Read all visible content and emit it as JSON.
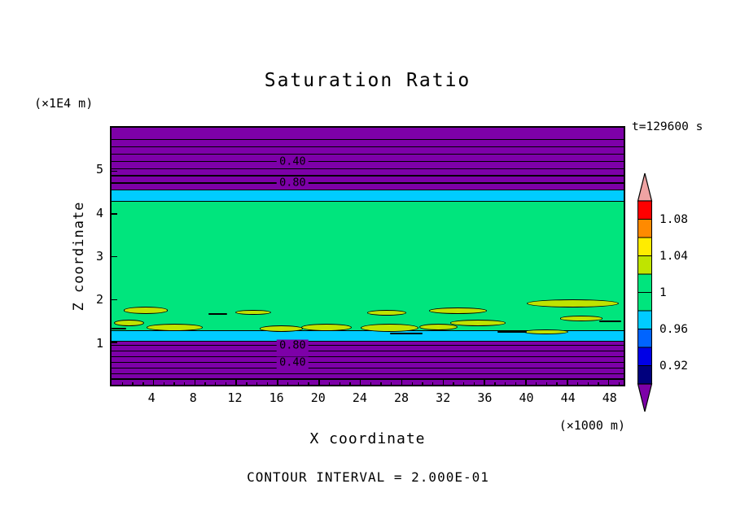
{
  "chart_data": {
    "type": "heatmap",
    "title": "Saturation Ratio",
    "time_label": "t=129600 s",
    "xlabel": "X coordinate",
    "ylabel": "Z coordinate",
    "x_unit": "(×1000 m)",
    "y_unit": "(×1E4 m)",
    "contour_interval_text": "CONTOUR INTERVAL = 2.000E-01",
    "x_domain": [
      0,
      49.5
    ],
    "y_domain": [
      0,
      6
    ],
    "x_ticks": [
      4,
      8,
      12,
      16,
      20,
      24,
      28,
      32,
      36,
      40,
      44,
      48
    ],
    "y_ticks": [
      1,
      2,
      3,
      4,
      5
    ],
    "colors": {
      "purple": "#7d00a8",
      "green": "#00e57d",
      "cyan": "#00ccff",
      "chartreuse": "#bfe400",
      "red": "#ff0000",
      "orange": "#ff8a00",
      "yellow": "#ffec00",
      "blue": "#0064ff",
      "dark_blue": "#0000e6",
      "navy": "#00007d",
      "pink": "#efa3a3",
      "line": "#000000"
    },
    "bands": [
      {
        "z_from": 4.55,
        "z_to": 6.0,
        "color": "purple"
      },
      {
        "z_from": 4.28,
        "z_to": 4.55,
        "color": "cyan"
      },
      {
        "z_from": 1.26,
        "z_to": 4.28,
        "color": "green"
      },
      {
        "z_from": 1.01,
        "z_to": 1.26,
        "color": "cyan"
      },
      {
        "z_from": 0.0,
        "z_to": 1.01,
        "color": "purple"
      }
    ],
    "boundary_lines": [
      4.55,
      4.28,
      1.26,
      1.01
    ],
    "contour_lines_top": [
      5.72,
      5.55,
      5.38,
      5.21,
      5.04,
      4.88,
      4.71
    ],
    "contour_lines_bottom": [
      0.92,
      0.79,
      0.66,
      0.52,
      0.39,
      0.26,
      0.13
    ],
    "contour_labels": [
      {
        "text": "0.40",
        "x": 17.5,
        "z": 5.21
      },
      {
        "text": "0.80",
        "x": 17.5,
        "z": 4.71
      },
      {
        "text": "0.80",
        "x": 17.5,
        "z": 0.92
      },
      {
        "text": "0.40",
        "x": 17.5,
        "z": 0.52
      }
    ],
    "yellow_features": [
      {
        "x": 3.3,
        "z": 1.74,
        "w": 4.3,
        "h": 0.16
      },
      {
        "x": 1.7,
        "z": 1.44,
        "w": 2.9,
        "h": 0.15
      },
      {
        "x": 6.1,
        "z": 1.34,
        "w": 5.5,
        "h": 0.17
      },
      {
        "x": 13.7,
        "z": 1.69,
        "w": 3.4,
        "h": 0.12
      },
      {
        "x": 16.4,
        "z": 1.31,
        "w": 4.2,
        "h": 0.15
      },
      {
        "x": 20.8,
        "z": 1.34,
        "w": 4.9,
        "h": 0.17
      },
      {
        "x": 26.9,
        "z": 1.33,
        "w": 5.6,
        "h": 0.19
      },
      {
        "x": 26.6,
        "z": 1.68,
        "w": 3.8,
        "h": 0.13
      },
      {
        "x": 31.6,
        "z": 1.35,
        "w": 3.7,
        "h": 0.15
      },
      {
        "x": 33.5,
        "z": 1.73,
        "w": 5.6,
        "h": 0.15
      },
      {
        "x": 35.4,
        "z": 1.44,
        "w": 5.4,
        "h": 0.15
      },
      {
        "x": 44.6,
        "z": 1.89,
        "w": 8.9,
        "h": 0.19
      },
      {
        "x": 45.4,
        "z": 1.55,
        "w": 4.1,
        "h": 0.12
      },
      {
        "x": 42.0,
        "z": 1.24,
        "w": 4.3,
        "h": 0.12
      }
    ],
    "black_dashes": [
      {
        "x": 10.3,
        "z": 1.65,
        "w": 1.8
      },
      {
        "x": 0.7,
        "z": 1.31,
        "w": 1.4
      },
      {
        "x": 28.5,
        "z": 1.2,
        "w": 3.1
      },
      {
        "x": 38.7,
        "z": 1.24,
        "w": 2.8
      },
      {
        "x": 48.2,
        "z": 1.48,
        "w": 2.1
      }
    ],
    "colorbar": {
      "top_arrow": "pink",
      "bottom_arrow": "purple",
      "segments": [
        "red",
        "orange",
        "yellow",
        "chartreuse",
        "green",
        "green",
        "cyan",
        "blue",
        "dark_blue",
        "navy"
      ],
      "labels": [
        {
          "text": "1.08",
          "boundary": 1
        },
        {
          "text": "1.04",
          "boundary": 3
        },
        {
          "text": "1",
          "boundary": 5
        },
        {
          "text": "0.96",
          "boundary": 7
        },
        {
          "text": "0.92",
          "boundary": 9
        }
      ]
    }
  }
}
